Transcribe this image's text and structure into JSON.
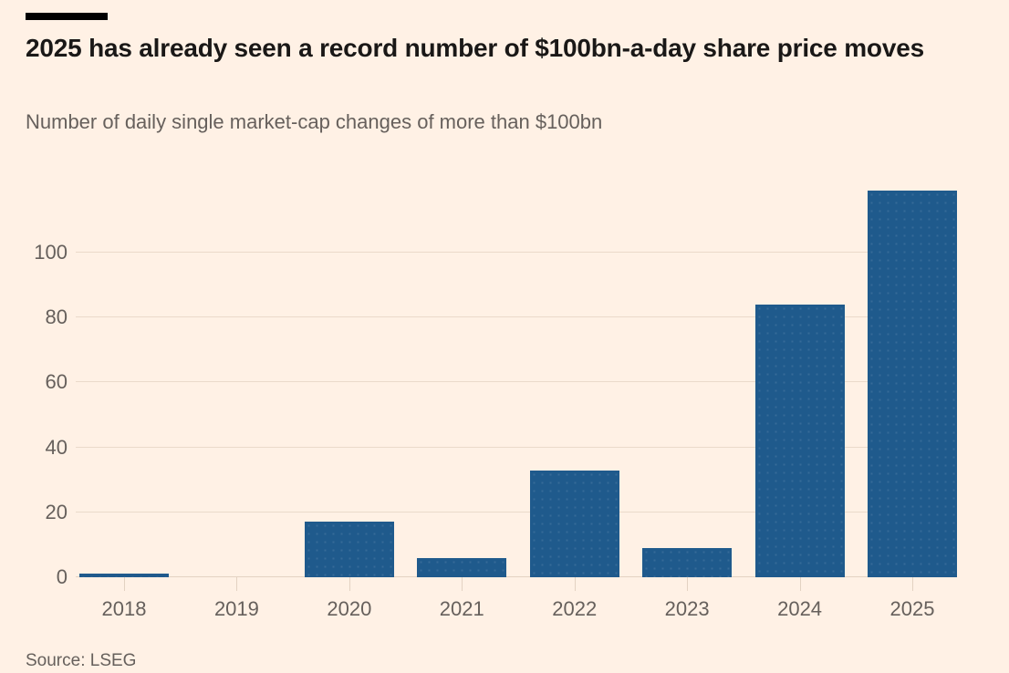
{
  "page": {
    "title": "2025 has already seen a record number of $100bn-a-day share price moves",
    "subtitle": "Number of daily single market-cap changes of more than $100bn",
    "source": "Source: LSEG"
  },
  "colors": {
    "background": "#FFF1E5",
    "top_rule": "#000000",
    "title_text": "#1A1817",
    "muted_text": "#66605C",
    "gridline": "#EADACA",
    "axis_line": "#E3D2C2",
    "bar": "#1F5A8C"
  },
  "chart_data": {
    "type": "bar",
    "title": "2025 has already seen a record number of $100bn-a-day share price moves",
    "subtitle": "Number of daily single market-cap changes of more than $100bn",
    "source": "Source: LSEG",
    "categories": [
      "2018",
      "2019",
      "2020",
      "2021",
      "2022",
      "2023",
      "2024",
      "2025"
    ],
    "values": [
      1,
      0,
      17,
      6,
      33,
      9,
      84,
      119
    ],
    "xlabel": "",
    "ylabel": "",
    "yticks": [
      0,
      20,
      40,
      60,
      80,
      100
    ],
    "ylim": [
      0,
      123
    ],
    "grid": "horizontal",
    "legend": "none",
    "bar_color": "#1F5A8C"
  }
}
